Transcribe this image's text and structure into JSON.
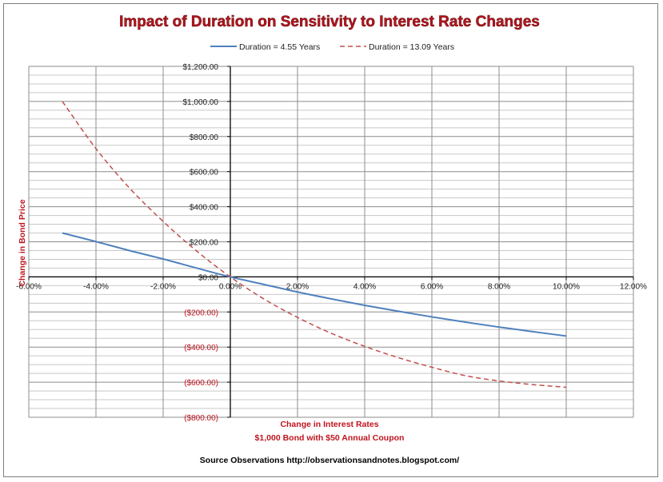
{
  "chart_data": {
    "type": "line",
    "title": "Impact of Duration on Sensitivity to Interest Rate Changes",
    "xlabel": "Change in Interest Rates",
    "xlabel2": "$1,000 Bond with $50 Annual Coupon",
    "ylabel": "Change in Bond Price",
    "xlim": [
      -6,
      12
    ],
    "ylim": [
      -800,
      1200
    ],
    "x_ticks": [
      -6,
      -4,
      -2,
      0,
      2,
      4,
      6,
      8,
      10,
      12
    ],
    "x_tick_labels": [
      "-6.00%",
      "-4.00%",
      "-2.00%",
      "0.00%",
      "2.00%",
      "4.00%",
      "6.00%",
      "8.00%",
      "10.00%",
      "12.00%"
    ],
    "y_ticks": [
      -800,
      -600,
      -400,
      -200,
      0,
      200,
      400,
      600,
      800,
      1000,
      1200
    ],
    "y_tick_labels": [
      "($800.00)",
      "($600.00)",
      "($400.00)",
      "($200.00)",
      "$0.00",
      "$200.00",
      "$400.00",
      "$600.00",
      "$800.00",
      "$1,000.00",
      "$1,200.00"
    ],
    "grid": true,
    "legend_position": "top-center",
    "x": [
      -5,
      -4,
      -3,
      -2,
      -1,
      0,
      1,
      2,
      3,
      4,
      5,
      6,
      7,
      8,
      9,
      10
    ],
    "series": [
      {
        "name": "Duration = 4.55 Years",
        "style": "solid",
        "color": "#4f81bd",
        "values": [
          250,
          201,
          150,
          102,
          50,
          0,
          -43,
          -86,
          -125,
          -162,
          -196,
          -228,
          -258,
          -286,
          -312,
          -337
        ]
      },
      {
        "name": "Duration = 13.09 Years",
        "style": "dashed",
        "color": "#c0504d",
        "values": [
          1000,
          731,
          506,
          316,
          147,
          0,
          -126,
          -231,
          -321,
          -396,
          -460,
          -515,
          -563,
          -593,
          -614,
          -629
        ]
      }
    ]
  },
  "source_text": "Source  Observations   http://observationsandnotes.blogspot.com/"
}
